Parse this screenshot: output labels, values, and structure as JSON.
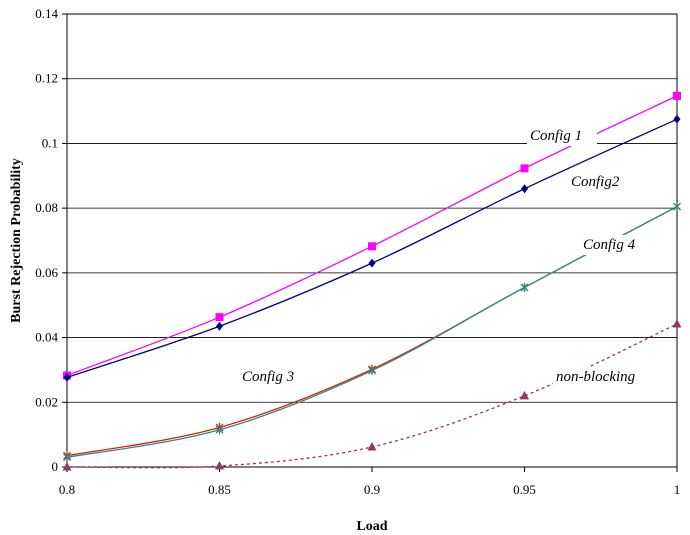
{
  "chart_data": {
    "type": "line",
    "xlabel": "Load",
    "ylabel": "Burst Rejection Probability",
    "xlim": [
      0.8,
      1.0
    ],
    "ylim": [
      0,
      0.14
    ],
    "x_ticks": [
      "0.8",
      "0.85",
      "0.9",
      "0.95",
      "1"
    ],
    "y_ticks": [
      "0",
      "0.02",
      "0.04",
      "0.06",
      "0.08",
      "0.1",
      "0.12",
      "0.14"
    ],
    "grid": "horizontal",
    "legend": "none",
    "x": [
      0.8,
      0.85,
      0.9,
      0.95,
      1.0
    ],
    "series": [
      {
        "name": "Config 1",
        "values": [
          0.0283,
          0.0463,
          0.0682,
          0.0923,
          0.1147
        ],
        "color": "#ff00ff",
        "marker": "square",
        "dash": ""
      },
      {
        "name": "Config2",
        "values": [
          0.0277,
          0.0435,
          0.063,
          0.086,
          0.1075
        ],
        "color": "#000080",
        "marker": "diamond",
        "dash": ""
      },
      {
        "name": "Config 3",
        "values": [
          0.0035,
          0.0122,
          0.0302,
          0.0555,
          0.0805
        ],
        "color": "#e02000",
        "marker": "star",
        "dash": ""
      },
      {
        "name": "Config 4",
        "values": [
          0.003,
          0.0115,
          0.0298,
          0.0555,
          0.0805
        ],
        "color": "#2e8b8b",
        "marker": "star",
        "dash": ""
      },
      {
        "name": "non-blocking",
        "values": [
          0.0,
          0.0003,
          0.0062,
          0.022,
          0.0442
        ],
        "color": "#993366",
        "marker": "triangle",
        "dash": "3,3"
      }
    ],
    "annotations": [
      {
        "text": "Config 1"
      },
      {
        "text": "Config2"
      },
      {
        "text": "Config 4"
      },
      {
        "text": "Config 3"
      },
      {
        "text": "non-blocking"
      }
    ]
  }
}
